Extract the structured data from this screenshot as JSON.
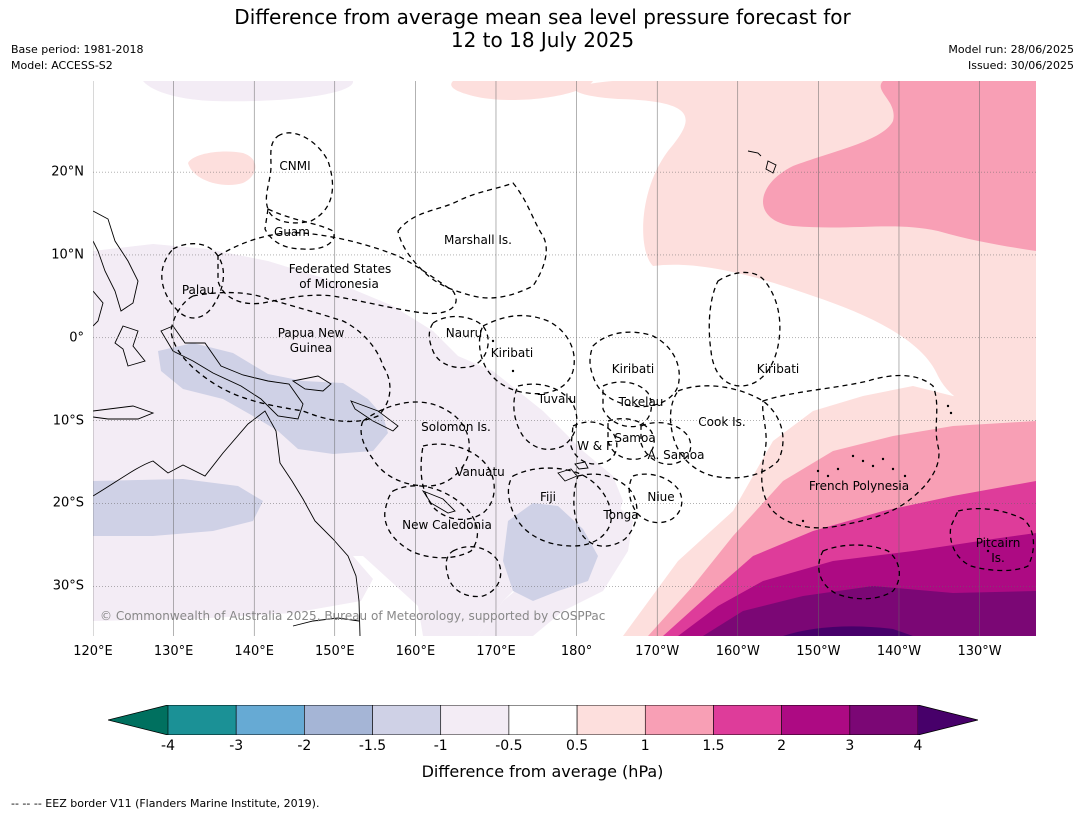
{
  "title": {
    "line1": "Difference from average mean sea level pressure forecast for",
    "line2": "12 to 18 July 2025"
  },
  "meta_left": {
    "base_period": "Base period: 1981-2018",
    "model": "Model: ACCESS-S2"
  },
  "meta_right": {
    "model_run": "Model run: 28/06/2025",
    "issued": "Issued: 30/06/2025"
  },
  "map": {
    "extent": {
      "lon_min": 120,
      "lon_max": 237,
      "lat_min": -36,
      "lat_max": 31
    },
    "lon_labels": [
      "120°E",
      "130°E",
      "140°E",
      "150°E",
      "160°E",
      "170°E",
      "180°",
      "170°W",
      "160°W",
      "150°W",
      "140°W",
      "130°W"
    ],
    "lat_labels": [
      "20°N",
      "10°N",
      "0°",
      "10°S",
      "20°S",
      "30°S"
    ],
    "places": [
      "CNMI",
      "Guam",
      "Marshall Is.",
      "Federated States",
      "of Micronesia",
      "Palau",
      "Papua New",
      "Guinea",
      "Nauru",
      "Kiribati",
      "Kiribati",
      "Kiribati",
      "Tuvalu",
      "Tokelau",
      "Cook Is.",
      "Solomon Is.",
      "Samoa",
      "W & F",
      "A. Samoa",
      "Vanuatu",
      "Fiji",
      "Niue",
      "Tonga",
      "New Caledonia",
      "French Polynesia",
      "Pitcairn",
      "Is."
    ],
    "copyright": "© Commonwealth of Australia 2025, Bureau of Meteorology, supported by COSPPac"
  },
  "colorbar": {
    "tick_labels": [
      "-4",
      "-3",
      "-2",
      "-1.5",
      "-1",
      "-0.5",
      "0.5",
      "1",
      "1.5",
      "2",
      "3",
      "4"
    ],
    "colors": [
      "#1b9196",
      "#66aad4",
      "#a5b5d6",
      "#cfd1e6",
      "#f3ecf5",
      "#ffffff",
      "#fddfdd",
      "#f89fb5",
      "#de3c9a",
      "#ad0a83",
      "#7b0775"
    ],
    "under_color": "#00705f",
    "over_color": "#47006a",
    "label": "Difference from average (hPa)"
  },
  "footer": "--  --  -- EEZ border V11 (Flanders Marine Institute, 2019)."
}
